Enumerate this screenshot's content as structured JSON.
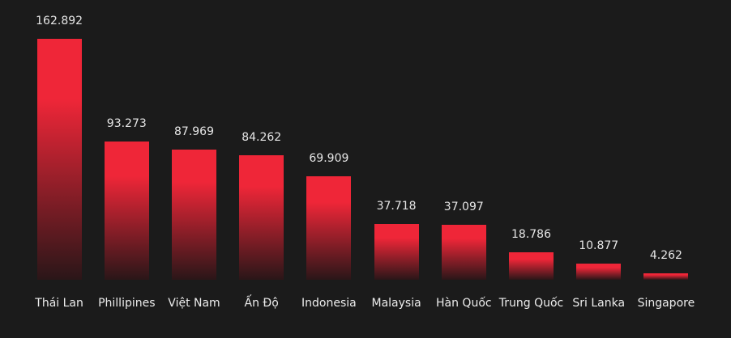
{
  "chart_data": {
    "type": "bar",
    "categories": [
      "Thái Lan",
      "Phillipines",
      "Việt Nam",
      "Ấn Độ",
      "Indonesia",
      "Malaysia",
      "Hàn Quốc",
      "Trung Quốc",
      "Sri Lanka",
      "Singapore"
    ],
    "values": [
      162.892,
      93.273,
      87.969,
      84.262,
      69.909,
      37.718,
      37.097,
      18.786,
      10.877,
      4.262
    ],
    "color": "#ef2638"
  }
}
